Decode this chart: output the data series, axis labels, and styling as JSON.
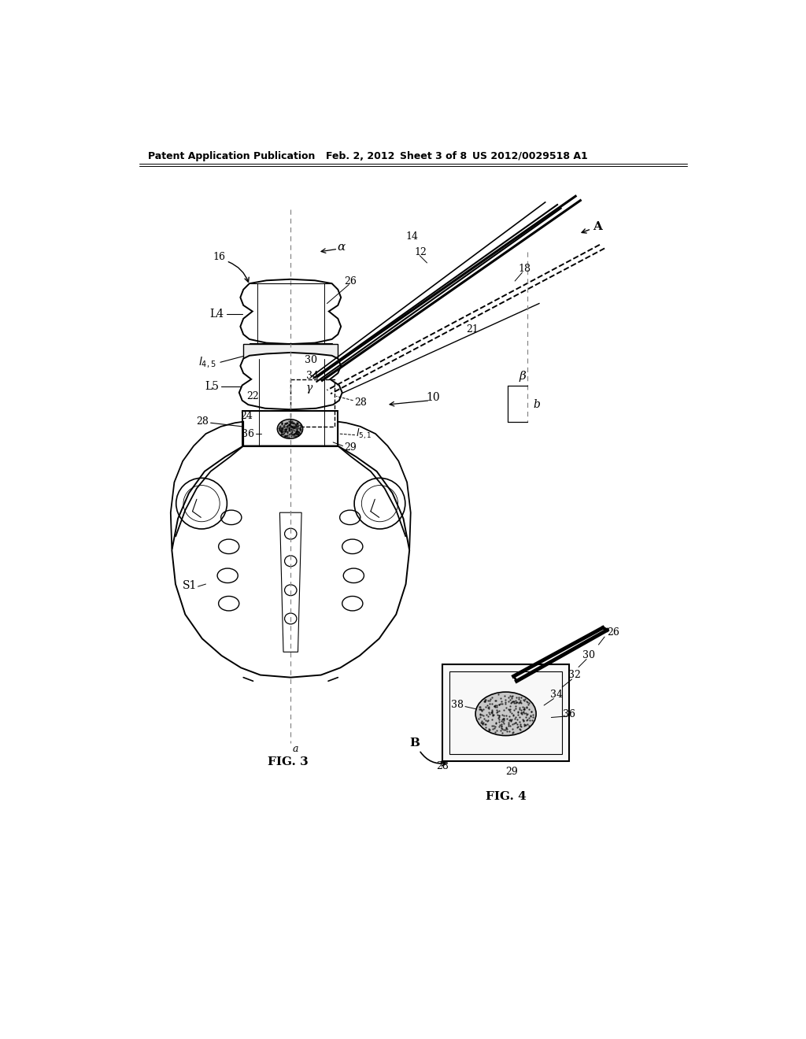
{
  "background_color": "#ffffff",
  "header_text": "Patent Application Publication",
  "header_date": "Feb. 2, 2012",
  "header_sheet": "Sheet 3 of 8",
  "header_patent": "US 2012/0029518 A1",
  "fig3_label": "FIG. 3",
  "fig4_label": "FIG. 4",
  "label_color": "#000000",
  "line_color": "#000000",
  "drawing_color": "#333333"
}
